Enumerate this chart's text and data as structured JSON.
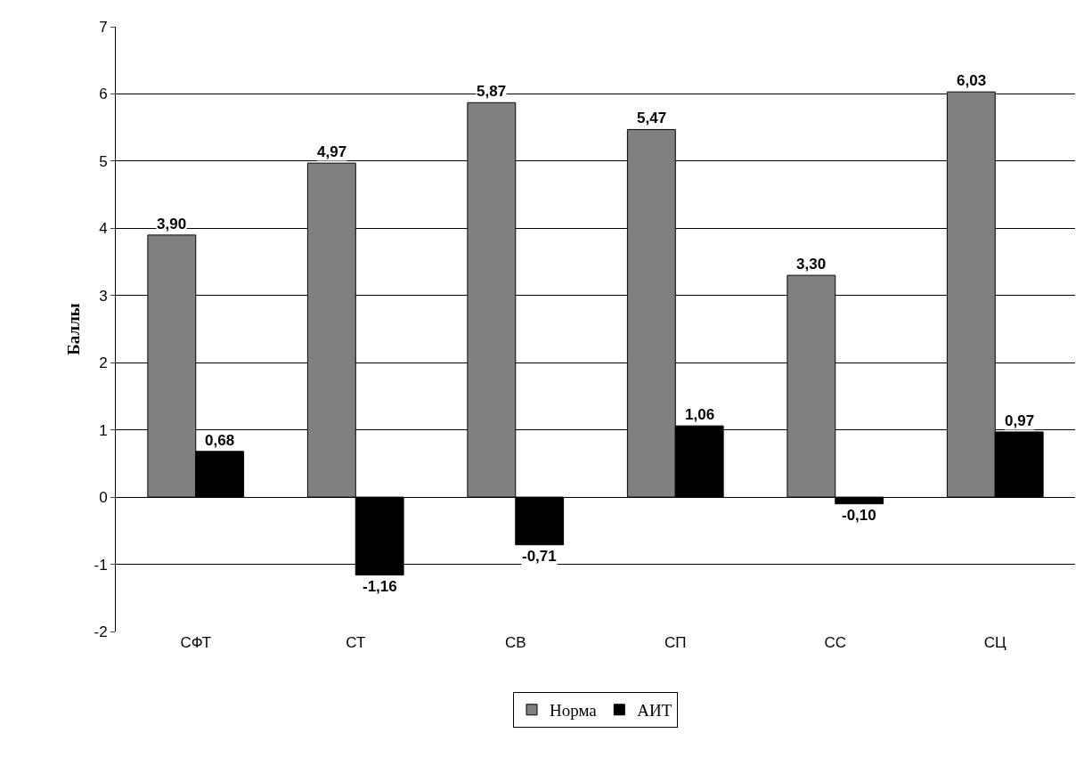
{
  "chart_data": {
    "type": "bar",
    "ylabel": "Баллы",
    "categories": [
      "СФТ",
      "СТ",
      "СВ",
      "СП",
      "СС",
      "СЦ"
    ],
    "series": [
      {
        "name": "Норма",
        "color": "#808080",
        "values": [
          3.9,
          4.97,
          5.87,
          5.47,
          3.3,
          6.03
        ],
        "value_labels": [
          "3,90",
          "4,97",
          "5,87",
          "5,47",
          "3,30",
          "6,03"
        ]
      },
      {
        "name": "АИТ",
        "color": "#000000",
        "values": [
          0.68,
          -1.16,
          -0.71,
          1.06,
          -0.1,
          0.97
        ],
        "value_labels": [
          "0,68",
          "-1,16",
          "-0,71",
          "1,06",
          "-0,10",
          "0,97"
        ]
      }
    ],
    "ylim": [
      -2,
      7
    ],
    "yticks": [
      -2,
      -1,
      0,
      1,
      2,
      3,
      4,
      5,
      6,
      7
    ],
    "grid": "y",
    "legend": "bottom"
  }
}
